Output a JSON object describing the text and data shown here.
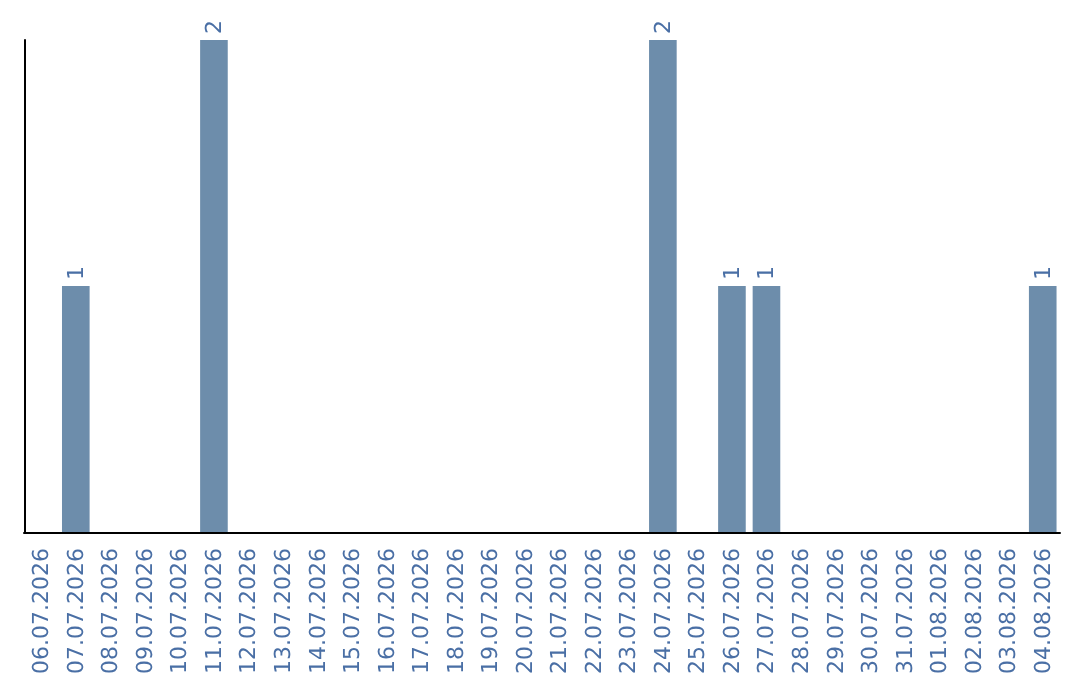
{
  "chart_data": {
    "type": "bar",
    "categories": [
      "06.07.2026",
      "07.07.2026",
      "08.07.2026",
      "09.07.2026",
      "10.07.2026",
      "11.07.2026",
      "12.07.2026",
      "13.07.2026",
      "14.07.2026",
      "15.07.2026",
      "16.07.2026",
      "17.07.2026",
      "18.07.2026",
      "19.07.2026",
      "20.07.2026",
      "21.07.2026",
      "22.07.2026",
      "23.07.2026",
      "24.07.2026",
      "25.07.2026",
      "26.07.2026",
      "27.07.2026",
      "28.07.2026",
      "29.07.2026",
      "30.07.2026",
      "31.07.2026",
      "01.08.2026",
      "02.08.2026",
      "03.08.2026",
      "04.08.2026"
    ],
    "values": [
      0,
      1,
      0,
      0,
      0,
      2,
      0,
      0,
      0,
      0,
      0,
      0,
      0,
      0,
      0,
      0,
      0,
      0,
      2,
      0,
      1,
      1,
      0,
      0,
      0,
      0,
      0,
      0,
      0,
      1
    ],
    "value_labels": [
      null,
      "1",
      null,
      null,
      null,
      "2",
      null,
      null,
      null,
      null,
      null,
      null,
      null,
      null,
      null,
      null,
      null,
      null,
      "2",
      null,
      "1",
      "1",
      null,
      null,
      null,
      null,
      null,
      null,
      null,
      "1"
    ],
    "color": "#6d8dab",
    "tick_labels": "x"
  }
}
